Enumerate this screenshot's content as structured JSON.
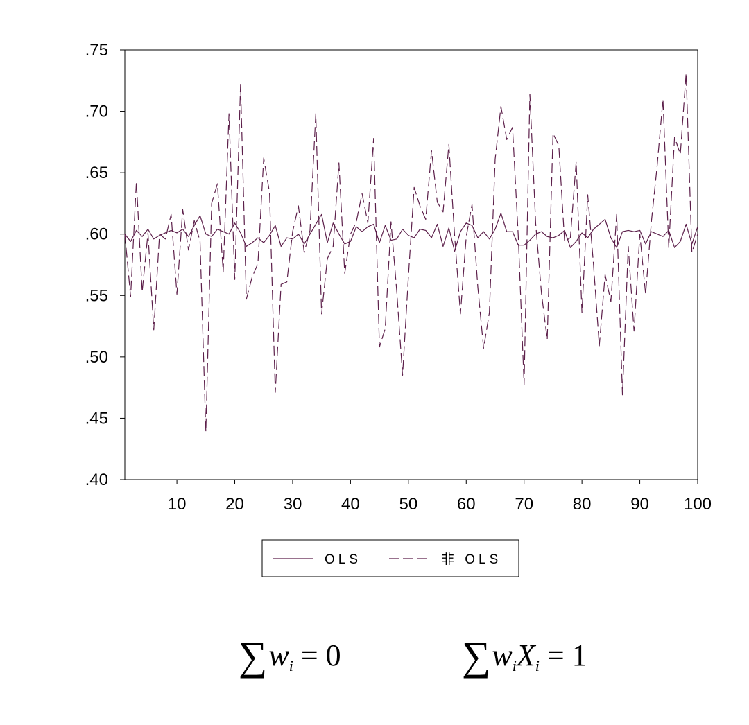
{
  "chart_data": {
    "type": "line",
    "x": [
      1,
      2,
      3,
      4,
      5,
      6,
      7,
      8,
      9,
      10,
      11,
      12,
      13,
      14,
      15,
      16,
      17,
      18,
      19,
      20,
      21,
      22,
      23,
      24,
      25,
      26,
      27,
      28,
      29,
      30,
      31,
      32,
      33,
      34,
      35,
      36,
      37,
      38,
      39,
      40,
      41,
      42,
      43,
      44,
      45,
      46,
      47,
      48,
      49,
      50,
      51,
      52,
      53,
      54,
      55,
      56,
      57,
      58,
      59,
      60,
      61,
      62,
      63,
      64,
      65,
      66,
      67,
      68,
      69,
      70,
      71,
      72,
      73,
      74,
      75,
      76,
      77,
      78,
      79,
      80,
      81,
      82,
      83,
      84,
      85,
      86,
      87,
      88,
      89,
      90,
      91,
      92,
      93,
      94,
      95,
      96,
      97,
      98,
      99,
      100
    ],
    "series": [
      {
        "name": "OLS",
        "style": "solid",
        "values": [
          0.6,
          0.594,
          0.603,
          0.598,
          0.604,
          0.596,
          0.599,
          0.601,
          0.603,
          0.601,
          0.604,
          0.598,
          0.607,
          0.615,
          0.6,
          0.598,
          0.604,
          0.602,
          0.6,
          0.609,
          0.601,
          0.59,
          0.593,
          0.597,
          0.593,
          0.599,
          0.607,
          0.59,
          0.597,
          0.596,
          0.6,
          0.592,
          0.6,
          0.608,
          0.616,
          0.593,
          0.609,
          0.6,
          0.592,
          0.594,
          0.606,
          0.602,
          0.606,
          0.608,
          0.593,
          0.607,
          0.595,
          0.596,
          0.604,
          0.599,
          0.597,
          0.604,
          0.603,
          0.597,
          0.608,
          0.59,
          0.605,
          0.586,
          0.602,
          0.609,
          0.607,
          0.597,
          0.602,
          0.596,
          0.604,
          0.617,
          0.602,
          0.602,
          0.591,
          0.591,
          0.595,
          0.6,
          0.602,
          0.598,
          0.597,
          0.599,
          0.603,
          0.589,
          0.594,
          0.601,
          0.597,
          0.604,
          0.608,
          0.612,
          0.597,
          0.589,
          0.602,
          0.603,
          0.602,
          0.603,
          0.592,
          0.602,
          0.6,
          0.598,
          0.603,
          0.589,
          0.594,
          0.608,
          0.592,
          0.606
        ]
      },
      {
        "name": "非 OLS",
        "style": "dashed",
        "values": [
          0.6,
          0.549,
          0.643,
          0.553,
          0.601,
          0.522,
          0.6,
          0.596,
          0.616,
          0.551,
          0.62,
          0.587,
          0.611,
          0.594,
          0.439,
          0.625,
          0.641,
          0.569,
          0.698,
          0.563,
          0.722,
          0.547,
          0.565,
          0.576,
          0.662,
          0.634,
          0.471,
          0.559,
          0.561,
          0.602,
          0.623,
          0.585,
          0.603,
          0.698,
          0.535,
          0.58,
          0.59,
          0.658,
          0.568,
          0.6,
          0.61,
          0.633,
          0.609,
          0.678,
          0.508,
          0.523,
          0.61,
          0.553,
          0.485,
          0.565,
          0.638,
          0.623,
          0.612,
          0.668,
          0.626,
          0.618,
          0.673,
          0.598,
          0.535,
          0.598,
          0.624,
          0.557,
          0.507,
          0.536,
          0.661,
          0.704,
          0.677,
          0.687,
          0.598,
          0.477,
          0.714,
          0.609,
          0.552,
          0.514,
          0.682,
          0.672,
          0.594,
          0.597,
          0.659,
          0.536,
          0.632,
          0.575,
          0.509,
          0.567,
          0.545,
          0.616,
          0.469,
          0.59,
          0.521,
          0.6,
          0.551,
          0.61,
          0.656,
          0.71,
          0.589,
          0.679,
          0.665,
          0.731,
          0.585,
          0.6
        ]
      }
    ],
    "xlim": [
      1,
      100
    ],
    "ylim": [
      0.4,
      0.75
    ],
    "x_ticks": [
      10,
      20,
      30,
      40,
      50,
      60,
      70,
      80,
      90,
      100
    ],
    "x_tick_labels": [
      "10",
      "20",
      "30",
      "40",
      "50",
      "60",
      "70",
      "80",
      "90",
      "100"
    ],
    "y_ticks": [
      0.4,
      0.45,
      0.5,
      0.55,
      0.6,
      0.65,
      0.7,
      0.75
    ],
    "y_tick_labels": [
      ".40",
      ".45",
      ".50",
      ".55",
      ".60",
      ".65",
      ".70",
      ".75"
    ],
    "title": "",
    "xlabel": "",
    "ylabel": "",
    "grid": false,
    "legend_placement": "bottom-center",
    "line_color": "#5c1f4a"
  },
  "formulas": {
    "left": {
      "sigma": "∑",
      "var": "w",
      "sub": "i",
      "rest": " = 0"
    },
    "right": {
      "sigma": "∑",
      "var1": "w",
      "sub1": "i",
      "var2": "X",
      "sub2": "i",
      "rest": " = 1"
    }
  }
}
